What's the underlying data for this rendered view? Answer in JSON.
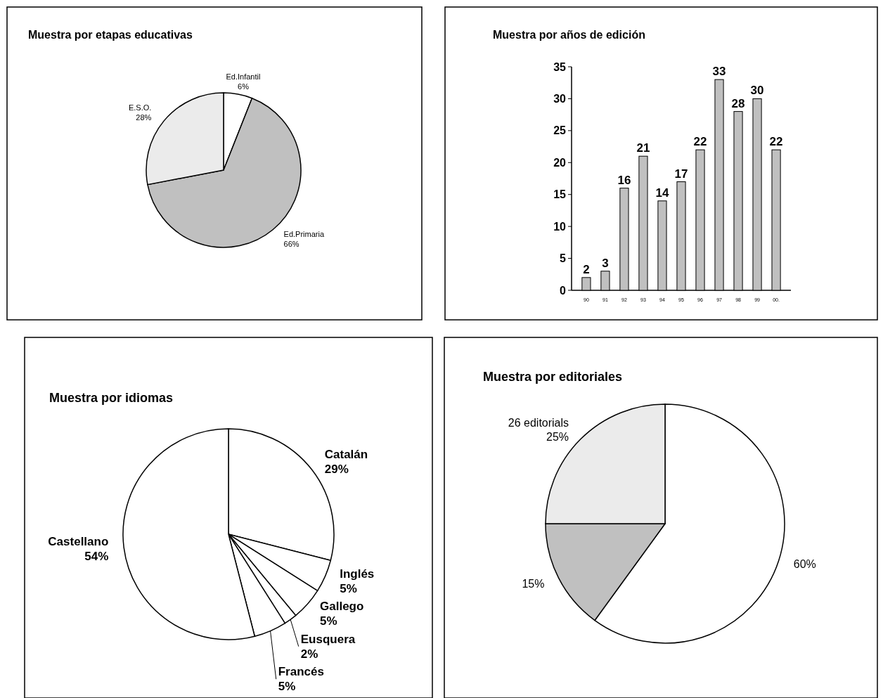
{
  "chart_data": [
    {
      "type": "pie",
      "title": "Muestra por etapas educativas",
      "categories": [
        "Ed.Infantil",
        "Ed.Primaria",
        "E.S.O."
      ],
      "values": [
        6,
        66,
        28
      ],
      "colors": [
        "#ffffff",
        "#c0c0c0",
        "#ebebeb"
      ],
      "value_labels": [
        "6%",
        "66%",
        "28%"
      ]
    },
    {
      "type": "bar",
      "title": "Muestra por años de edición",
      "categories": [
        "90",
        "91",
        "92",
        "93",
        "94",
        "95",
        "96",
        "97",
        "98",
        "99",
        "00."
      ],
      "values": [
        2,
        3,
        16,
        21,
        14,
        17,
        22,
        33,
        28,
        30,
        22
      ],
      "color": "#c0c0c0",
      "ylim": [
        0,
        35
      ],
      "yticks": [
        0,
        5,
        10,
        15,
        20,
        25,
        30,
        35
      ],
      "data_labels": true
    },
    {
      "type": "pie",
      "title": "Muestra por idiomas",
      "categories": [
        "Catalán",
        "Inglés",
        "Gallego",
        "Eusquera",
        "Francés",
        "Castellano"
      ],
      "values": [
        29,
        5,
        5,
        2,
        5,
        54
      ],
      "colors": [
        "#ffffff",
        "#ffffff",
        "#ffffff",
        "#ffffff",
        "#ffffff",
        "#ffffff"
      ],
      "value_labels": [
        "29%",
        "5%",
        "5%",
        "2%",
        "5%",
        "54%"
      ]
    },
    {
      "type": "pie",
      "title": "Muestra por editoriales",
      "categories": [
        null,
        null,
        "26 editorials"
      ],
      "values": [
        60,
        15,
        25
      ],
      "colors": [
        "#ffffff",
        "#c0c0c0",
        "#ebebeb"
      ],
      "value_labels": [
        "60%",
        "15%",
        "25%"
      ]
    }
  ]
}
